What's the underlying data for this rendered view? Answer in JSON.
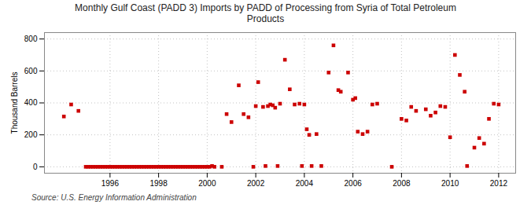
{
  "chart_data": {
    "type": "scatter",
    "title": "Monthly Gulf Coast (PADD 3) Imports by PADD of Processing from Syria of Total Petroleum\nProducts",
    "ylabel": "Thousand Barrels",
    "annotations": [
      "Source: U.S. Energy Information Administration"
    ],
    "color": "#cc0000",
    "marker": "square",
    "grid": true,
    "xlim": [
      1993.3,
      2012.7
    ],
    "ylim": [
      -40,
      840
    ],
    "xticks": [
      1996,
      1998,
      2000,
      2002,
      2004,
      2006,
      2008,
      2010,
      2012
    ],
    "yticks": [
      0,
      200,
      400,
      600,
      800
    ],
    "x": [
      1994.1,
      1994.4,
      1994.7,
      1995.0,
      1995.1,
      1995.2,
      1995.3,
      1995.4,
      1995.5,
      1995.6,
      1995.7,
      1995.8,
      1995.9,
      1996.0,
      1996.1,
      1996.2,
      1996.3,
      1996.4,
      1996.5,
      1996.6,
      1996.7,
      1996.8,
      1996.9,
      1997.0,
      1997.1,
      1997.2,
      1997.3,
      1997.4,
      1997.5,
      1997.6,
      1997.7,
      1997.8,
      1997.9,
      1998.0,
      1998.1,
      1998.2,
      1998.3,
      1998.4,
      1998.5,
      1998.6,
      1998.7,
      1998.8,
      1998.9,
      1999.0,
      1999.1,
      1999.2,
      1999.3,
      1999.4,
      1999.5,
      1999.6,
      1999.7,
      1999.8,
      1999.9,
      2000.0,
      2000.1,
      2000.2,
      2000.3,
      2000.6,
      2000.8,
      2001.0,
      2001.3,
      2001.5,
      2001.7,
      2001.9,
      2002.0,
      2002.1,
      2002.3,
      2002.4,
      2002.5,
      2002.6,
      2002.7,
      2002.8,
      2002.9,
      2003.0,
      2003.2,
      2003.4,
      2003.6,
      2003.8,
      2003.9,
      2004.0,
      2004.1,
      2004.2,
      2004.3,
      2004.5,
      2004.7,
      2005.0,
      2005.2,
      2005.4,
      2005.5,
      2005.8,
      2006.0,
      2006.1,
      2006.2,
      2006.4,
      2006.6,
      2006.8,
      2007.0,
      2007.6,
      2008.0,
      2008.2,
      2008.4,
      2008.6,
      2009.0,
      2009.2,
      2009.4,
      2009.6,
      2009.8,
      2010.0,
      2010.2,
      2010.4,
      2010.6,
      2010.7,
      2011.0,
      2011.2,
      2011.4,
      2011.6,
      2011.8,
      2012.0
    ],
    "values": [
      315,
      390,
      350,
      0,
      0,
      0,
      0,
      0,
      0,
      0,
      0,
      0,
      0,
      0,
      0,
      0,
      0,
      0,
      0,
      0,
      0,
      0,
      0,
      0,
      0,
      0,
      0,
      0,
      0,
      0,
      0,
      0,
      0,
      0,
      0,
      0,
      0,
      0,
      0,
      0,
      0,
      0,
      0,
      0,
      0,
      0,
      0,
      0,
      0,
      0,
      0,
      0,
      0,
      0,
      0,
      5,
      0,
      0,
      330,
      280,
      510,
      330,
      310,
      0,
      380,
      530,
      375,
      5,
      380,
      390,
      385,
      370,
      5,
      395,
      670,
      485,
      390,
      395,
      5,
      390,
      235,
      200,
      5,
      205,
      5,
      590,
      760,
      480,
      470,
      590,
      420,
      430,
      220,
      205,
      220,
      390,
      395,
      0,
      300,
      290,
      375,
      350,
      360,
      320,
      340,
      380,
      375,
      185,
      700,
      575,
      470,
      5,
      120,
      180,
      145,
      300,
      395,
      390
    ]
  }
}
